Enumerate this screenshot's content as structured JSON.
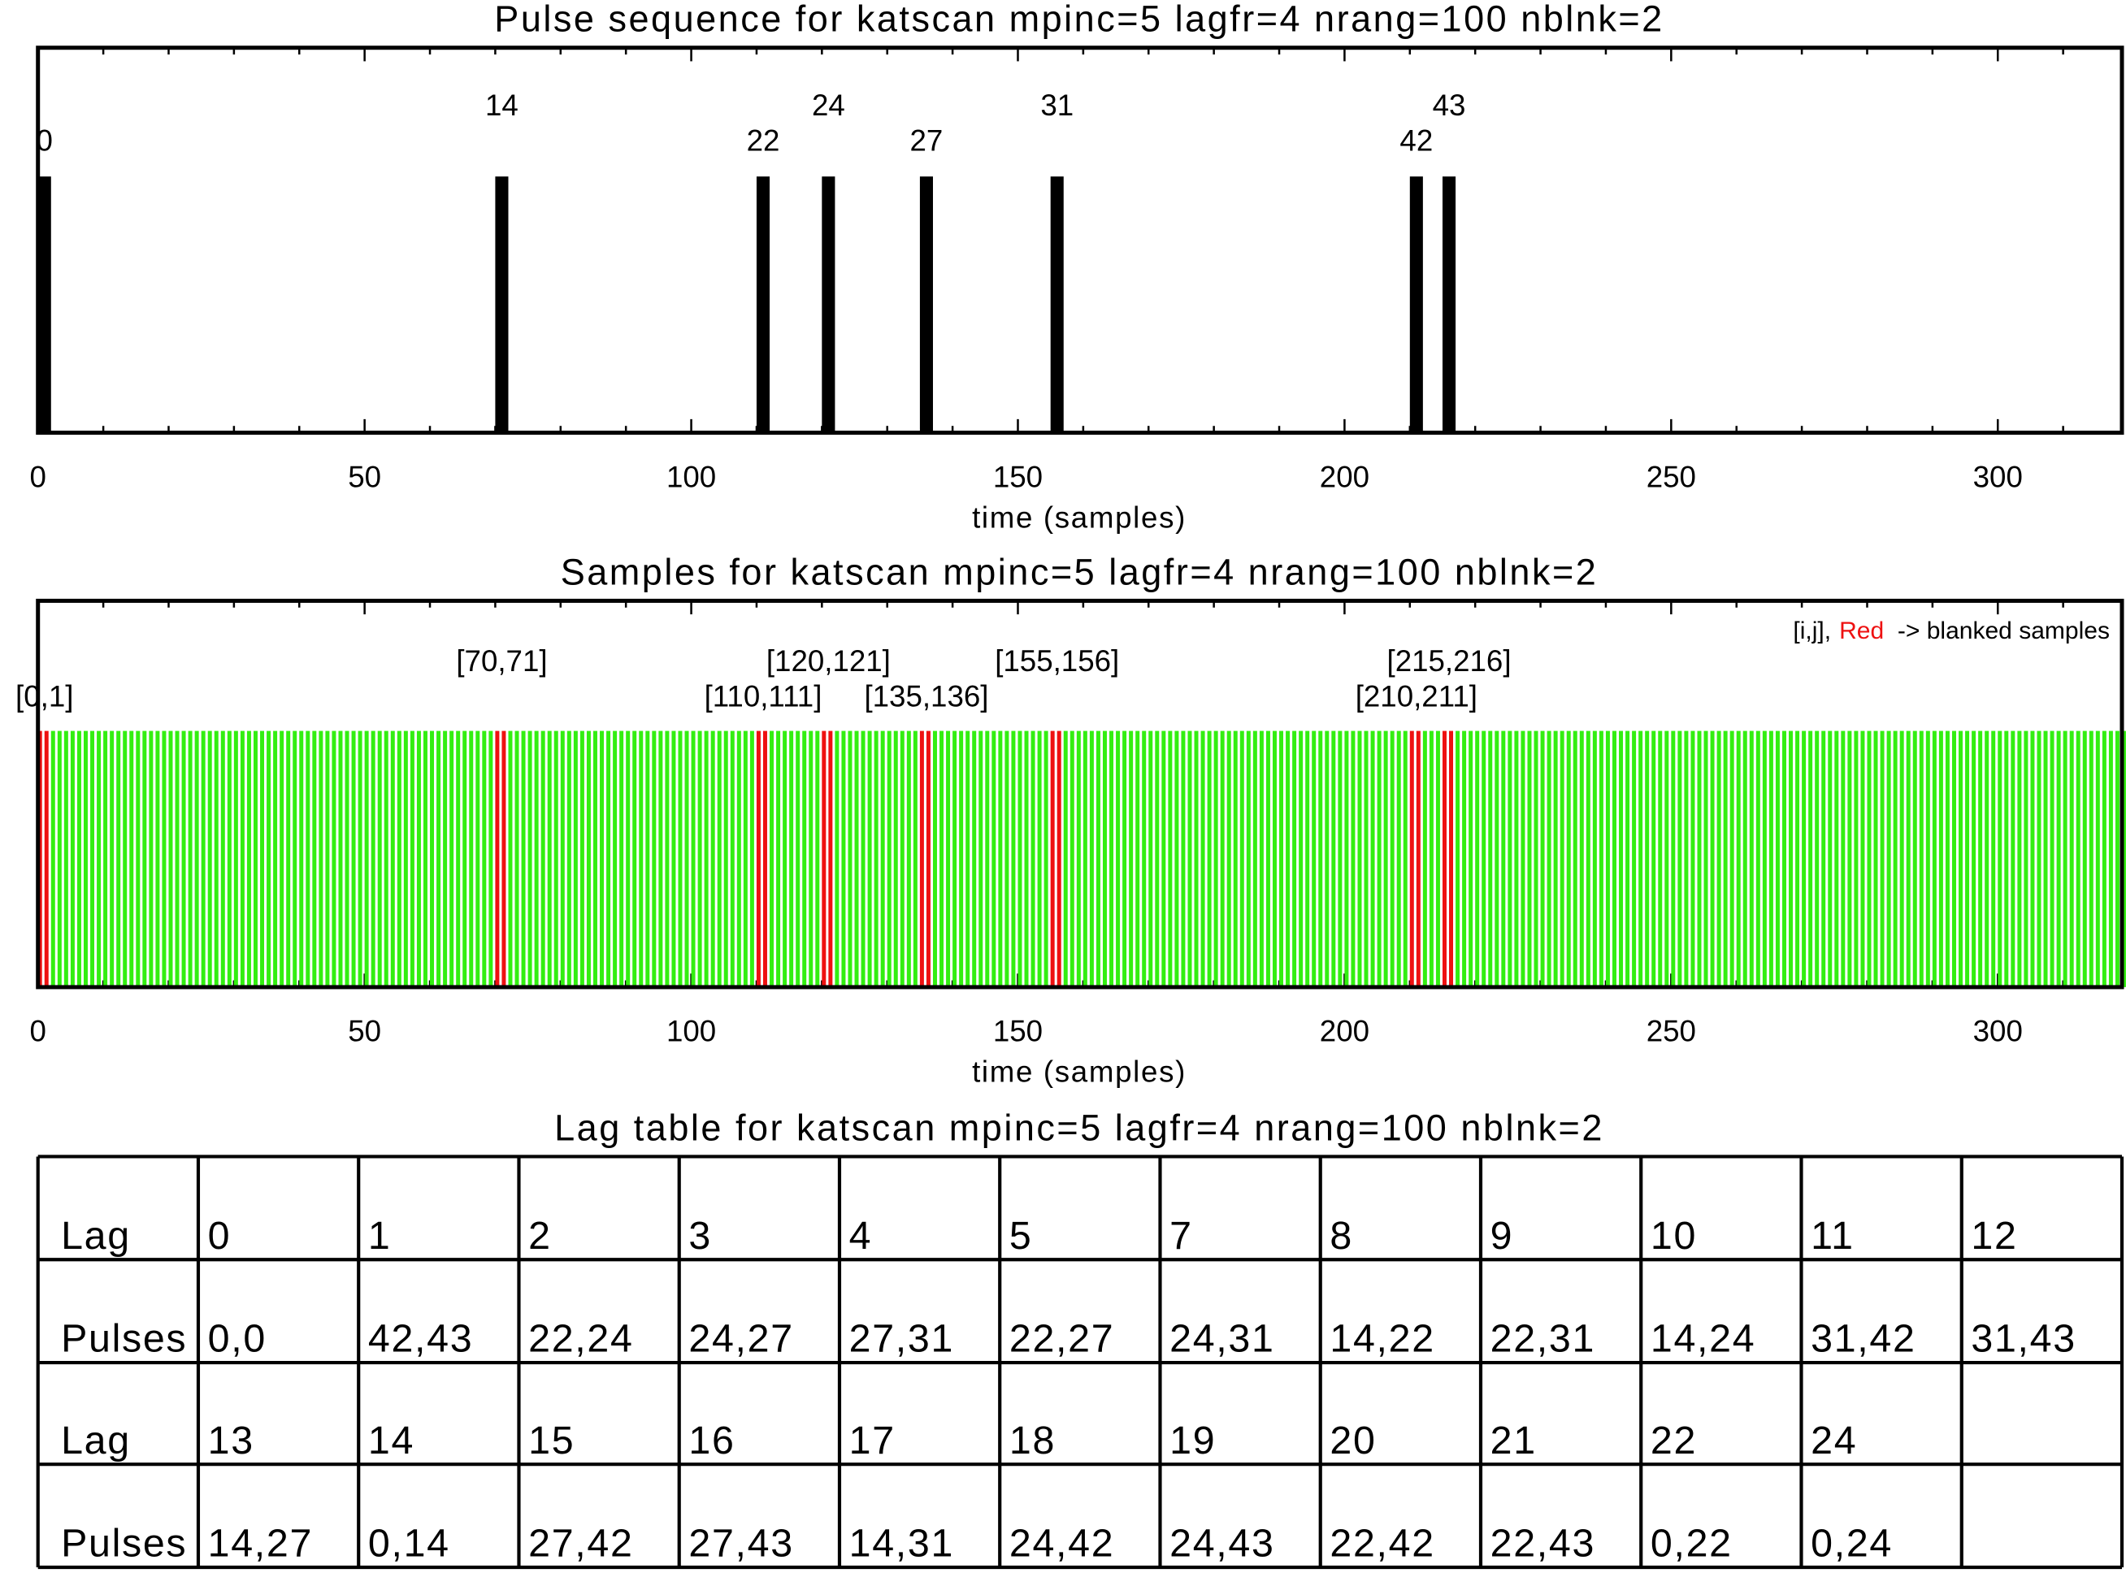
{
  "chart_data": [
    {
      "type": "bar",
      "title": "Pulse sequence for katscan mpinc=5 lagfr=4 nrang=100 nblnk=2",
      "xlabel": "time (samples)",
      "ylabel": "",
      "xlim": [
        0,
        319
      ],
      "xticks": [
        "0",
        "50",
        "100",
        "150",
        "200",
        "250",
        "300"
      ],
      "mpinc": 5,
      "pulse_width_samples": 2,
      "pulses": [
        0,
        14,
        22,
        24,
        27,
        31,
        42,
        43
      ],
      "pulse_labels": [
        "0",
        "14",
        "22",
        "24",
        "27",
        "31",
        "42",
        "43"
      ],
      "bar_color": "#000000"
    },
    {
      "type": "bar",
      "title": "Samples for katscan mpinc=5 lagfr=4 nrang=100 nblnk=2",
      "xlabel": "time (samples)",
      "ylabel": "",
      "xlim": [
        0,
        319
      ],
      "xticks": [
        "0",
        "50",
        "100",
        "150",
        "200",
        "250",
        "300"
      ],
      "n_samples": 320,
      "blanked_samples": [
        0,
        1,
        70,
        71,
        110,
        111,
        120,
        121,
        135,
        136,
        155,
        156,
        210,
        211,
        215,
        216
      ],
      "blank_labels": [
        "[0,1]",
        "[70,71]",
        "[110,111]",
        "[120,121]",
        "[135,136]",
        "[155,156]",
        "[210,211]",
        "[215,216]"
      ],
      "legend": {
        "prefix": "[i,j],",
        "red_word": "Red",
        "suffix": "-> blanked samples",
        "placement": "top-right"
      },
      "sample_color": "#33ee11",
      "blank_color": "#ee1111"
    },
    {
      "type": "table",
      "title": "Lag table for katscan mpinc=5 lagfr=4 nrang=100 nblnk=2",
      "rows": [
        [
          "Lag",
          "0",
          "1",
          "2",
          "3",
          "4",
          "5",
          "7",
          "8",
          "9",
          "10",
          "11",
          "12"
        ],
        [
          "Pulses",
          "0,0",
          "42,43",
          "22,24",
          "24,27",
          "27,31",
          "22,27",
          "24,31",
          "14,22",
          "22,31",
          "14,24",
          "31,42",
          "31,43"
        ],
        [
          "Lag",
          "13",
          "14",
          "15",
          "16",
          "17",
          "18",
          "19",
          "20",
          "21",
          "22",
          "24",
          ""
        ],
        [
          "Pulses",
          "14,27",
          "0,14",
          "27,42",
          "27,43",
          "14,31",
          "24,42",
          "24,43",
          "22,42",
          "22,43",
          "0,22",
          "0,24",
          ""
        ]
      ]
    }
  ]
}
